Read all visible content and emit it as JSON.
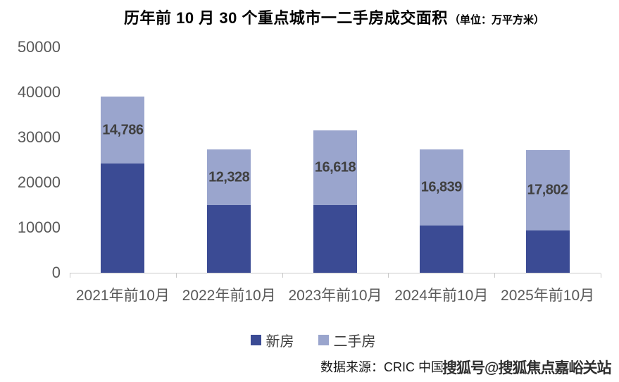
{
  "title": {
    "main": "历年前 10 月 30 个重点城市一二手房成交面积",
    "unit": "（单位：万平方米）"
  },
  "chart_data": {
    "type": "bar",
    "stacked": true,
    "title": "历年前 10 月 30 个重点城市一二手房成交面积",
    "unit_label": "万平方米",
    "xlabel": "",
    "ylabel": "",
    "categories": [
      "2021年前10月",
      "2022年前10月",
      "2023年前10月",
      "2024年前10月",
      "2025年前10月"
    ],
    "series": [
      {
        "name": "新房",
        "color": "#3B4B94",
        "values": [
          24200,
          15000,
          15000,
          10500,
          9400
        ]
      },
      {
        "name": "二手房",
        "color": "#9AA5CD",
        "values": [
          14786,
          12328,
          16618,
          16839,
          17802
        ],
        "data_labels": [
          "14,786",
          "12,328",
          "16,618",
          "16,839",
          "17,802"
        ]
      }
    ],
    "ylim": [
      0,
      50000
    ],
    "yticks": [
      0,
      10000,
      20000,
      30000,
      40000,
      50000
    ],
    "grid": false,
    "legend_position": "bottom"
  },
  "legend": {
    "items": [
      {
        "label": "新房",
        "color": "#3B4B94"
      },
      {
        "label": "二手房",
        "color": "#9AA5CD"
      }
    ]
  },
  "footer": {
    "source": "数据来源：CRIC 中国",
    "watermark": "搜狐号@搜狐焦点嘉峪关站"
  },
  "colors": {
    "new_home": "#3B4B94",
    "second_hand": "#9AA5CD",
    "axis_text": "#595959",
    "axis_line": "#C9C9C9",
    "data_label_text": "#404040"
  }
}
